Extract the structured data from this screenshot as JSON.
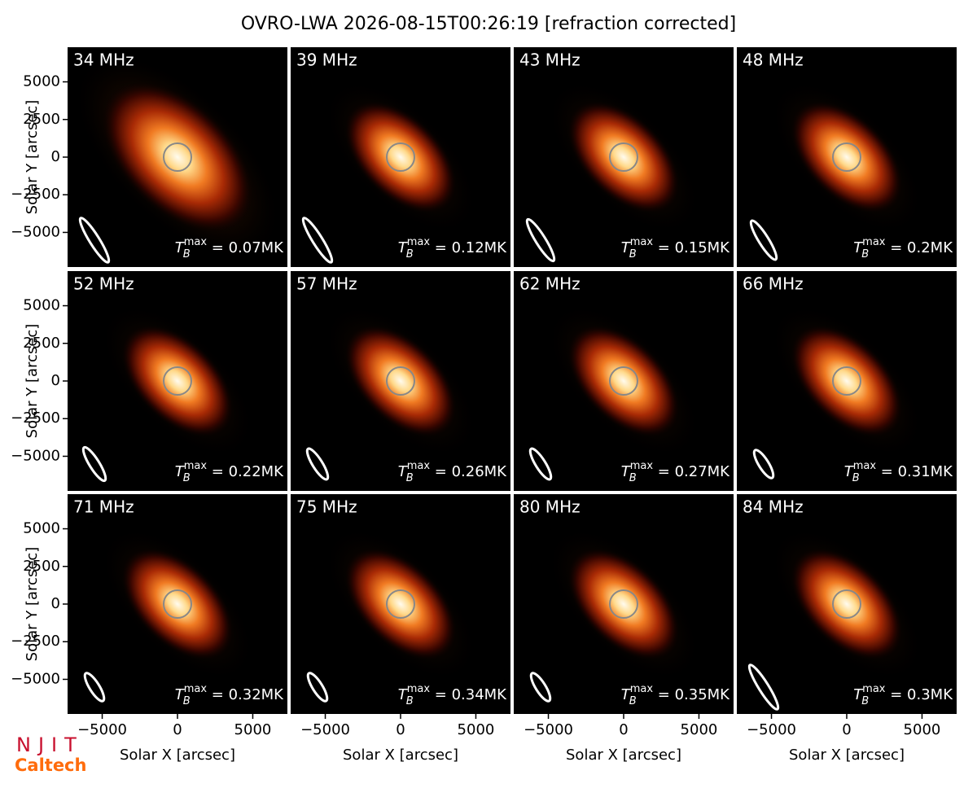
{
  "chart_data": {
    "type": "image-grid",
    "title": "OVRO-LWA 2026-08-15T00:26:19 [refraction corrected]",
    "x_label": "Solar X [arcsec]",
    "y_label": "Solar Y [arcsec]",
    "xlim": [
      -7300,
      7300
    ],
    "ylim": [
      -7300,
      7300
    ],
    "xticks": [
      {
        "value": -5000,
        "label": "−5000"
      },
      0,
      5000
    ],
    "yticks": [
      {
        "value": -5000,
        "label": "−5000"
      },
      {
        "value": -2500,
        "label": "−2500"
      },
      0,
      2500,
      5000
    ],
    "tb_symbol": "T",
    "tb_sub": "B",
    "tb_sup": "max",
    "tb_eq": " = ",
    "panels": [
      {
        "title": "34 MHz",
        "tb_max": "0.07MK"
      },
      {
        "title": "39 MHz",
        "tb_max": "0.12MK"
      },
      {
        "title": "43 MHz",
        "tb_max": "0.15MK"
      },
      {
        "title": "48 MHz",
        "tb_max": "0.2MK"
      },
      {
        "title": "52 MHz",
        "tb_max": "0.22MK"
      },
      {
        "title": "57 MHz",
        "tb_max": "0.26MK"
      },
      {
        "title": "62 MHz",
        "tb_max": "0.27MK"
      },
      {
        "title": "66 MHz",
        "tb_max": "0.31MK"
      },
      {
        "title": "71 MHz",
        "tb_max": "0.32MK"
      },
      {
        "title": "75 MHz",
        "tb_max": "0.34MK"
      },
      {
        "title": "80 MHz",
        "tb_max": "0.35MK"
      },
      {
        "title": "84 MHz",
        "tb_max": "0.3MK"
      }
    ],
    "logos": [
      "NJIT",
      "Caltech"
    ]
  }
}
